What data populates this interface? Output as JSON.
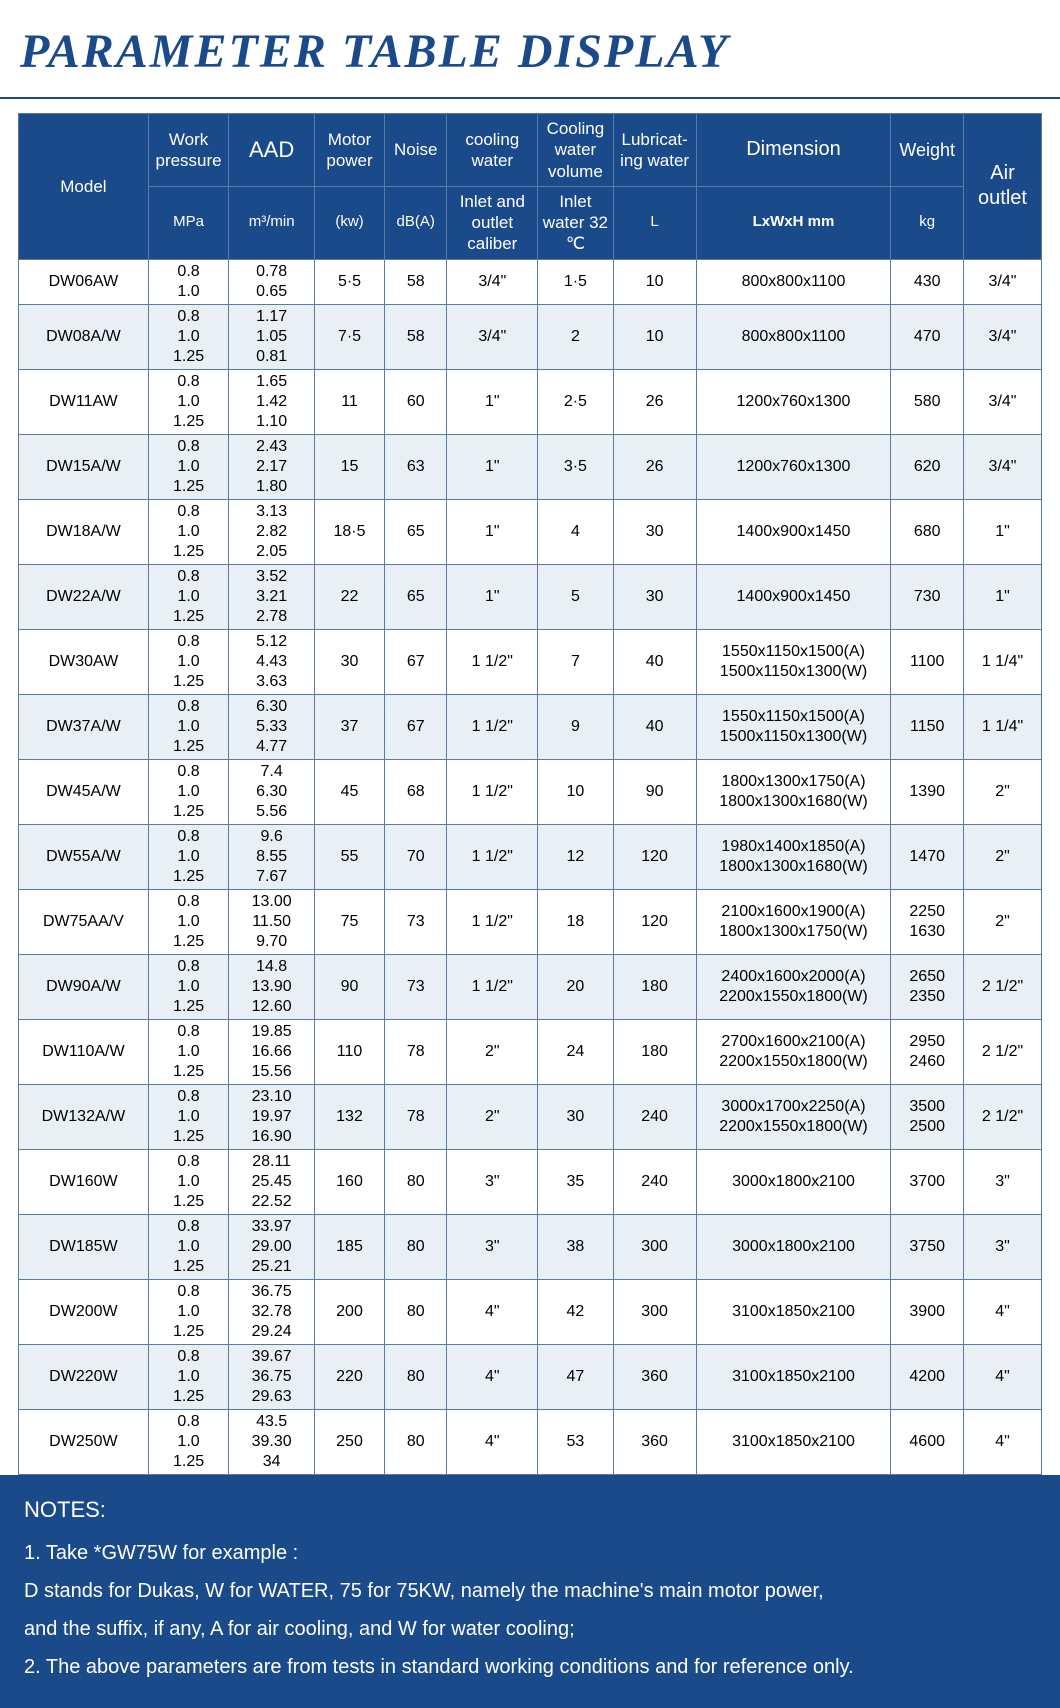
{
  "title": "PARAMETER TABLE DISPLAY",
  "colors": {
    "brand": "#1a4a8a",
    "row_even": "#e8f0f5",
    "row_odd": "#ffffff",
    "border": "#5a7aa0",
    "header_text": "#ffffff"
  },
  "header": {
    "model": "Model",
    "work_pressure": "Work pressure",
    "work_pressure_unit": "MPa",
    "aad": "AAD",
    "aad_unit": "m³/min",
    "motor_power": "Motor power",
    "motor_power_unit": "(kw)",
    "noise": "Noise",
    "noise_unit": "dB(A)",
    "cooling_water": "cooling water",
    "cooling_water_sub": "Inlet and outlet caliber",
    "cooling_water_volume": "Cooling water volume",
    "cooling_water_volume_sub": "Inlet water 32 ℃",
    "lubricating": "Lubricat-ing water",
    "lubricating_unit": "L",
    "dimension": "Dimension",
    "dimension_unit": "LxWxH mm",
    "weight": "Weight",
    "weight_unit": "kg",
    "air_outlet": "Air outlet"
  },
  "rows": [
    {
      "model": "DW06AW",
      "wp": "0.8\n1.0",
      "aad": "0.78\n0.65",
      "mp": "5·5",
      "noise": "58",
      "cw": "3/4\"",
      "cwv": "1·5",
      "lub": "10",
      "dim": "800x800x1100",
      "wt": "430",
      "air": "3/4\""
    },
    {
      "model": "DW08A/W",
      "wp": "0.8\n1.0\n1.25",
      "aad": "1.17\n1.05\n0.81",
      "mp": "7·5",
      "noise": "58",
      "cw": "3/4\"",
      "cwv": "2",
      "lub": "10",
      "dim": "800x800x1100",
      "wt": "470",
      "air": "3/4\""
    },
    {
      "model": "DW11AW",
      "wp": "0.8\n1.0\n1.25",
      "aad": "1.65\n1.42\n1.10",
      "mp": "11",
      "noise": "60",
      "cw": "1\"",
      "cwv": "2·5",
      "lub": "26",
      "dim": "1200x760x1300",
      "wt": "580",
      "air": "3/4\""
    },
    {
      "model": "DW15A/W",
      "wp": "0.8\n1.0\n1.25",
      "aad": "2.43\n2.17\n1.80",
      "mp": "15",
      "noise": "63",
      "cw": "1\"",
      "cwv": "3·5",
      "lub": "26",
      "dim": "1200x760x1300",
      "wt": "620",
      "air": "3/4\""
    },
    {
      "model": "DW18A/W",
      "wp": "0.8\n1.0\n1.25",
      "aad": "3.13\n2.82\n2.05",
      "mp": "18·5",
      "noise": "65",
      "cw": "1\"",
      "cwv": "4",
      "lub": "30",
      "dim": "1400x900x1450",
      "wt": "680",
      "air": "1\""
    },
    {
      "model": "DW22A/W",
      "wp": "0.8\n1.0\n1.25",
      "aad": "3.52\n3.21\n2.78",
      "mp": "22",
      "noise": "65",
      "cw": "1\"",
      "cwv": "5",
      "lub": "30",
      "dim": "1400x900x1450",
      "wt": "730",
      "air": "1\""
    },
    {
      "model": "DW30AW",
      "wp": "0.8\n1.0\n1.25",
      "aad": "5.12\n4.43\n3.63",
      "mp": "30",
      "noise": "67",
      "cw": "1 1/2\"",
      "cwv": "7",
      "lub": "40",
      "dim": "1550x1150x1500(A)\n1500x1150x1300(W)",
      "wt": "1100",
      "air": "1 1/4\""
    },
    {
      "model": "DW37A/W",
      "wp": "0.8\n1.0\n1.25",
      "aad": "6.30\n5.33\n4.77",
      "mp": "37",
      "noise": "67",
      "cw": "1 1/2\"",
      "cwv": "9",
      "lub": "40",
      "dim": "1550x1150x1500(A)\n1500x1150x1300(W)",
      "wt": "1150",
      "air": "1 1/4\""
    },
    {
      "model": "DW45A/W",
      "wp": "0.8\n1.0\n1.25",
      "aad": "7.4\n6.30\n5.56",
      "mp": "45",
      "noise": "68",
      "cw": "1 1/2\"",
      "cwv": "10",
      "lub": "90",
      "dim": "1800x1300x1750(A)\n1800x1300x1680(W)",
      "wt": "1390",
      "air": "2\""
    },
    {
      "model": "DW55A/W",
      "wp": "0.8\n1.0\n1.25",
      "aad": "9.6\n8.55\n7.67",
      "mp": "55",
      "noise": "70",
      "cw": "1 1/2\"",
      "cwv": "12",
      "lub": "120",
      "dim": "1980x1400x1850(A)\n1800x1300x1680(W)",
      "wt": "1470",
      "air": "2\""
    },
    {
      "model": "DW75AA/V",
      "wp": "0.8\n1.0\n1.25",
      "aad": "13.00\n11.50\n9.70",
      "mp": "75",
      "noise": "73",
      "cw": "1 1/2\"",
      "cwv": "18",
      "lub": "120",
      "dim": "2100x1600x1900(A)\n1800x1300x1750(W)",
      "wt": "2250\n1630",
      "air": "2\""
    },
    {
      "model": "DW90A/W",
      "wp": "0.8\n1.0\n1.25",
      "aad": "14.8\n13.90\n12.60",
      "mp": "90",
      "noise": "73",
      "cw": "1 1/2\"",
      "cwv": "20",
      "lub": "180",
      "dim": "2400x1600x2000(A)\n2200x1550x1800(W)",
      "wt": "2650\n2350",
      "air": "2 1/2\""
    },
    {
      "model": "DW110A/W",
      "wp": "0.8\n1.0\n1.25",
      "aad": "19.85\n16.66\n15.56",
      "mp": "110",
      "noise": "78",
      "cw": "2\"",
      "cwv": "24",
      "lub": "180",
      "dim": "2700x1600x2100(A)\n2200x1550x1800(W)",
      "wt": "2950\n2460",
      "air": "2 1/2\""
    },
    {
      "model": "DW132A/W",
      "wp": "0.8\n1.0\n1.25",
      "aad": "23.10\n19.97\n16.90",
      "mp": "132",
      "noise": "78",
      "cw": "2\"",
      "cwv": "30",
      "lub": "240",
      "dim": "3000x1700x2250(A)\n2200x1550x1800(W)",
      "wt": "3500\n2500",
      "air": "2 1/2\""
    },
    {
      "model": "DW160W",
      "wp": "0.8\n1.0\n1.25",
      "aad": "28.11\n25.45\n22.52",
      "mp": "160",
      "noise": "80",
      "cw": "3\"",
      "cwv": "35",
      "lub": "240",
      "dim": "3000x1800x2100",
      "wt": "3700",
      "air": "3\""
    },
    {
      "model": "DW185W",
      "wp": "0.8\n1.0\n1.25",
      "aad": "33.97\n29.00\n25.21",
      "mp": "185",
      "noise": "80",
      "cw": "3\"",
      "cwv": "38",
      "lub": "300",
      "dim": "3000x1800x2100",
      "wt": "3750",
      "air": "3\""
    },
    {
      "model": "DW200W",
      "wp": "0.8\n1.0\n1.25",
      "aad": "36.75\n32.78\n29.24",
      "mp": "200",
      "noise": "80",
      "cw": "4\"",
      "cwv": "42",
      "lub": "300",
      "dim": "3100x1850x2100",
      "wt": "3900",
      "air": "4\""
    },
    {
      "model": "DW220W",
      "wp": "0.8\n1.0\n1.25",
      "aad": "39.67\n36.75\n29.63",
      "mp": "220",
      "noise": "80",
      "cw": "4\"",
      "cwv": "47",
      "lub": "360",
      "dim": "3100x1850x2100",
      "wt": "4200",
      "air": "4\""
    },
    {
      "model": "DW250W",
      "wp": "0.8\n1.0\n1.25",
      "aad": "43.5\n39.30\n34",
      "mp": "250",
      "noise": "80",
      "cw": "4\"",
      "cwv": "53",
      "lub": "360",
      "dim": "3100x1850x2100",
      "wt": "4600",
      "air": "4\""
    }
  ],
  "notes": {
    "header": "NOTES:",
    "line1": "1. Take *GW75W for example :",
    "line2": "    D stands for Dukas, W for WATER, 75 for 75KW, namely the machine's main motor power,",
    "line3": "    and the suffix, if any, A for air cooling, and W for water cooling;",
    "line4": "2. The above parameters are from tests in standard working conditions and for reference only."
  }
}
